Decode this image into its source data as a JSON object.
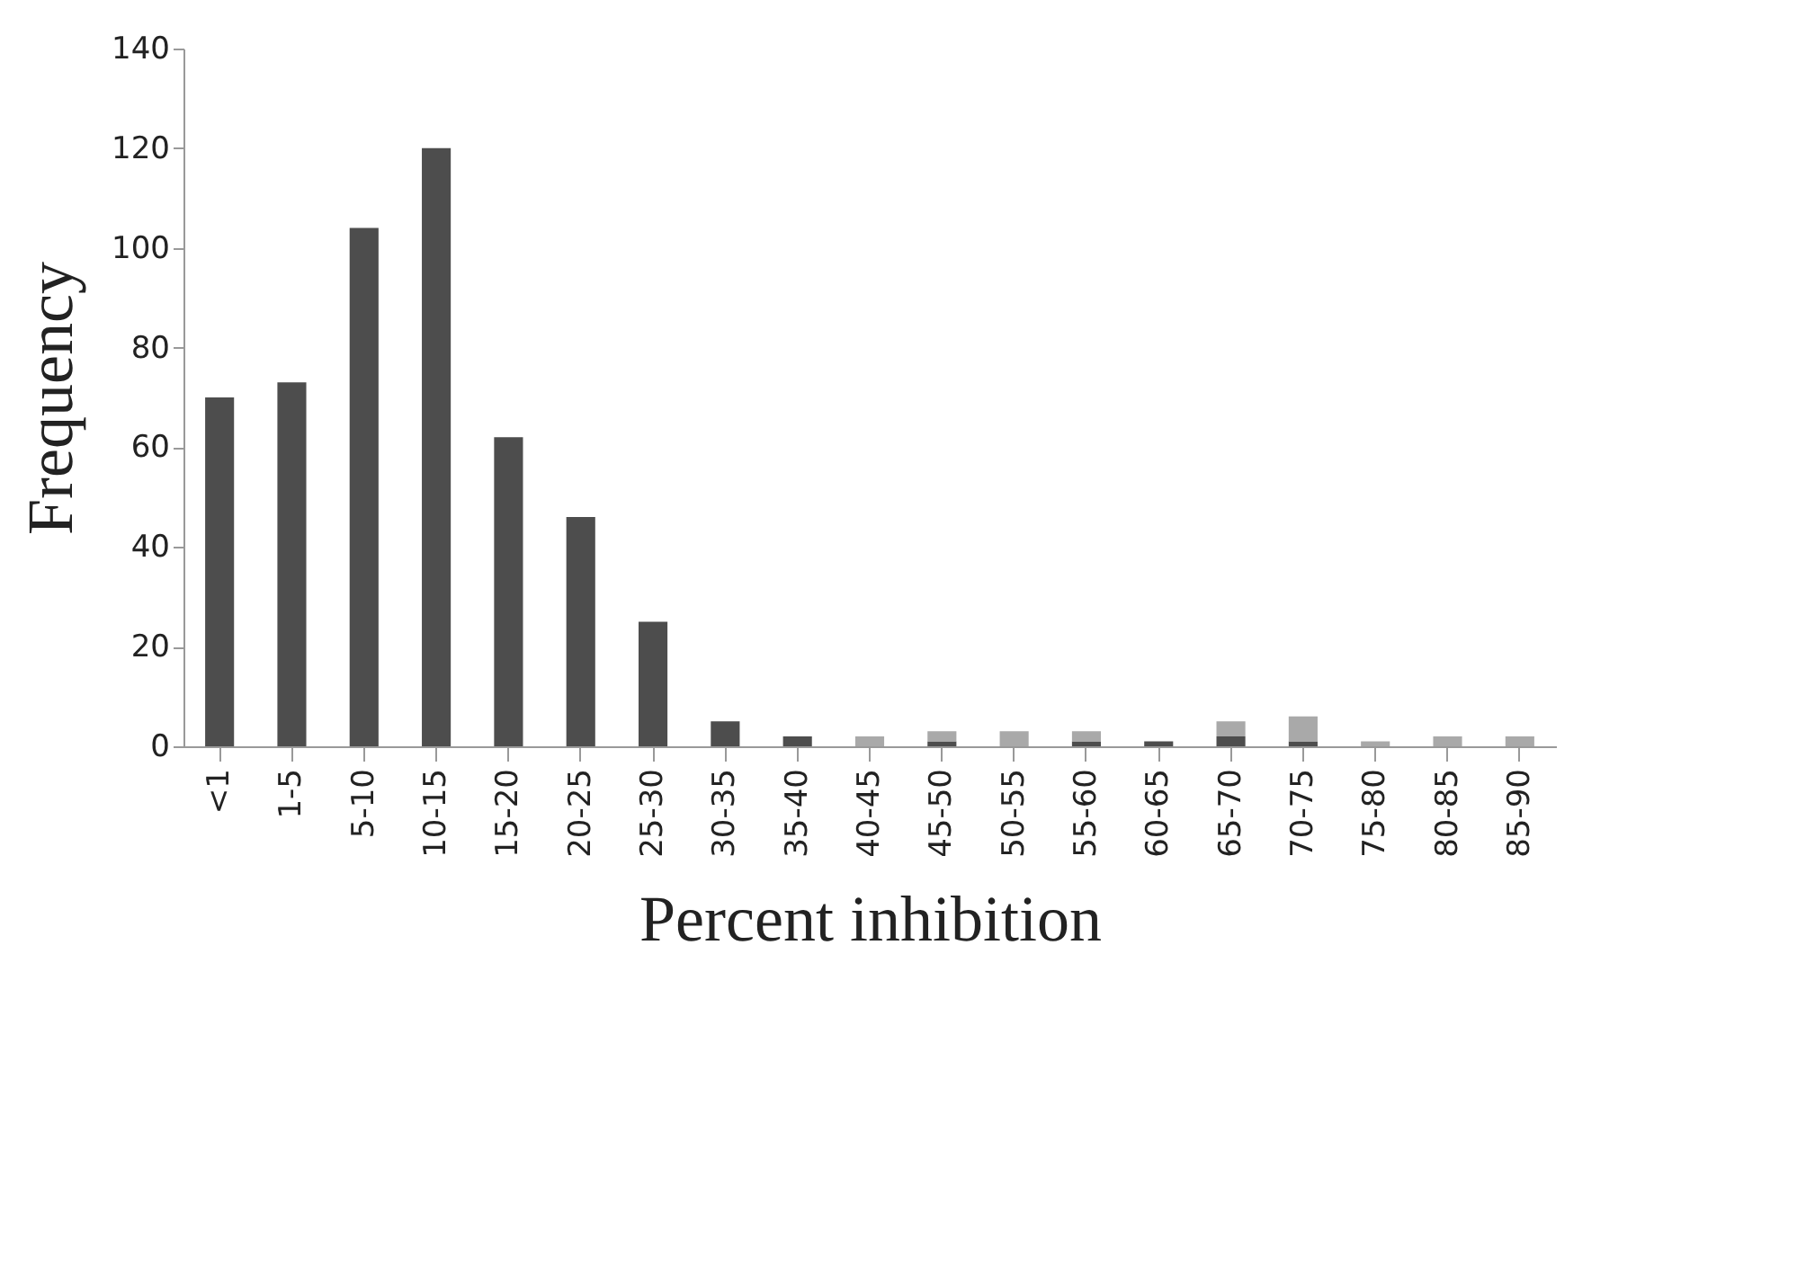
{
  "chart_data": {
    "type": "bar",
    "stacked": true,
    "xlabel": "Percent inhibition",
    "ylabel": "Frequency",
    "categories": [
      "<1",
      "1-5",
      "5-10",
      "10-15",
      "15-20",
      "20-25",
      "25-30",
      "30-35",
      "35-40",
      "40-45",
      "45-50",
      "50-55",
      "55-60",
      "60-65",
      "65-70",
      "70-75",
      "75-80",
      "80-85",
      "85-90"
    ],
    "series": [
      {
        "color": "#4d4d4d",
        "values": [
          70,
          73,
          104,
          120,
          62,
          46,
          25,
          5,
          2,
          0,
          1,
          0,
          1,
          1,
          2,
          1,
          0,
          0,
          0
        ]
      },
      {
        "color": "#a9a9a9",
        "values": [
          0,
          0,
          0,
          0,
          0,
          0,
          0,
          0,
          0,
          2,
          2,
          3,
          2,
          0,
          3,
          5,
          1,
          2,
          2
        ]
      }
    ],
    "ylim": [
      0,
      140
    ],
    "yticks": [
      0,
      20,
      40,
      60,
      80,
      100,
      120,
      140
    ],
    "grid": false,
    "legend": false
  }
}
